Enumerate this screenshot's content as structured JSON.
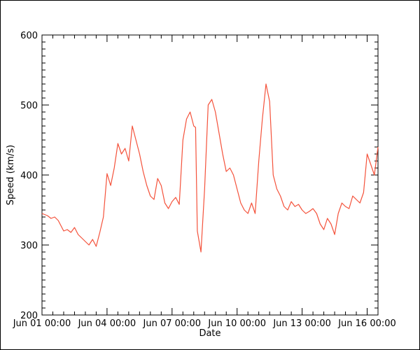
{
  "chart_data": {
    "type": "line",
    "title": "",
    "xlabel": "Date",
    "ylabel": "Speed (km/s)",
    "ylim": [
      200,
      600
    ],
    "xlim": [
      "2023-06-01T00:00",
      "2023-06-16T12:00"
    ],
    "grid": false,
    "line_color": "#f4523b",
    "x_tick_labels": [
      "Jun 01 00:00",
      "Jun 04 00:00",
      "Jun 07 00:00",
      "Jun 10 00:00",
      "Jun 13 00:00",
      "Jun 16 00:00"
    ],
    "y_tick_labels": [
      "200",
      "300",
      "400",
      "500",
      "600"
    ],
    "series": [
      {
        "x": [
          "2023-06-01T00:00",
          "2023-06-01T06:00",
          "2023-06-01T10:00",
          "2023-06-01T14:00",
          "2023-06-01T18:00",
          "2023-06-02T00:00",
          "2023-06-02T04:00",
          "2023-06-02T08:00",
          "2023-06-02T12:00",
          "2023-06-02T16:00",
          "2023-06-02T20:00",
          "2023-06-03T00:00",
          "2023-06-03T04:00",
          "2023-06-03T08:00",
          "2023-06-03T12:00",
          "2023-06-03T16:00",
          "2023-06-03T20:00",
          "2023-06-04T00:00",
          "2023-06-04T04:00",
          "2023-06-04T08:00",
          "2023-06-04T12:00",
          "2023-06-04T16:00",
          "2023-06-04T20:00",
          "2023-06-05T00:00",
          "2023-06-05T04:00",
          "2023-06-05T08:00",
          "2023-06-05T12:00",
          "2023-06-05T16:00",
          "2023-06-05T20:00",
          "2023-06-06T00:00",
          "2023-06-06T04:00",
          "2023-06-06T08:00",
          "2023-06-06T12:00",
          "2023-06-06T16:00",
          "2023-06-06T20:00",
          "2023-06-07T00:00",
          "2023-06-07T04:00",
          "2023-06-07T08:00",
          "2023-06-07T12:00",
          "2023-06-07T16:00",
          "2023-06-07T20:00",
          "2023-06-08T00:00",
          "2023-06-08T02:00",
          "2023-06-08T04:00",
          "2023-06-08T08:00",
          "2023-06-08T12:00",
          "2023-06-08T16:00",
          "2023-06-08T20:00",
          "2023-06-09T00:00",
          "2023-06-09T04:00",
          "2023-06-09T08:00",
          "2023-06-09T12:00",
          "2023-06-09T16:00",
          "2023-06-09T20:00",
          "2023-06-10T00:00",
          "2023-06-10T04:00",
          "2023-06-10T08:00",
          "2023-06-10T12:00",
          "2023-06-10T16:00",
          "2023-06-10T20:00",
          "2023-06-11T00:00",
          "2023-06-11T04:00",
          "2023-06-11T08:00",
          "2023-06-11T12:00",
          "2023-06-11T16:00",
          "2023-06-11T20:00",
          "2023-06-12T00:00",
          "2023-06-12T04:00",
          "2023-06-12T08:00",
          "2023-06-12T12:00",
          "2023-06-12T16:00",
          "2023-06-12T20:00",
          "2023-06-13T00:00",
          "2023-06-13T04:00",
          "2023-06-13T08:00",
          "2023-06-13T12:00",
          "2023-06-13T16:00",
          "2023-06-13T20:00",
          "2023-06-14T00:00",
          "2023-06-14T04:00",
          "2023-06-14T08:00",
          "2023-06-14T12:00",
          "2023-06-14T16:00",
          "2023-06-14T20:00",
          "2023-06-15T00:00",
          "2023-06-15T04:00",
          "2023-06-15T08:00",
          "2023-06-15T12:00",
          "2023-06-15T16:00",
          "2023-06-15T20:00",
          "2023-06-16T00:00",
          "2023-06-16T04:00",
          "2023-06-16T08:00",
          "2023-06-16T12:00"
        ],
        "values": [
          345,
          342,
          338,
          340,
          335,
          320,
          322,
          318,
          325,
          315,
          310,
          305,
          300,
          308,
          298,
          318,
          340,
          402,
          385,
          410,
          445,
          430,
          438,
          420,
          470,
          450,
          430,
          405,
          385,
          370,
          365,
          395,
          385,
          360,
          352,
          362,
          368,
          358,
          450,
          480,
          490,
          470,
          468,
          320,
          290,
          380,
          500,
          508,
          490,
          460,
          430,
          405,
          410,
          400,
          380,
          360,
          350,
          345,
          360,
          345,
          420,
          480,
          530,
          505,
          400,
          380,
          370,
          355,
          350,
          362,
          355,
          358,
          350,
          345,
          348,
          352,
          345,
          330,
          322,
          338,
          330,
          315,
          345,
          360,
          355,
          352,
          370,
          365,
          360,
          375,
          430,
          415,
          400,
          440
        ]
      }
    ]
  }
}
